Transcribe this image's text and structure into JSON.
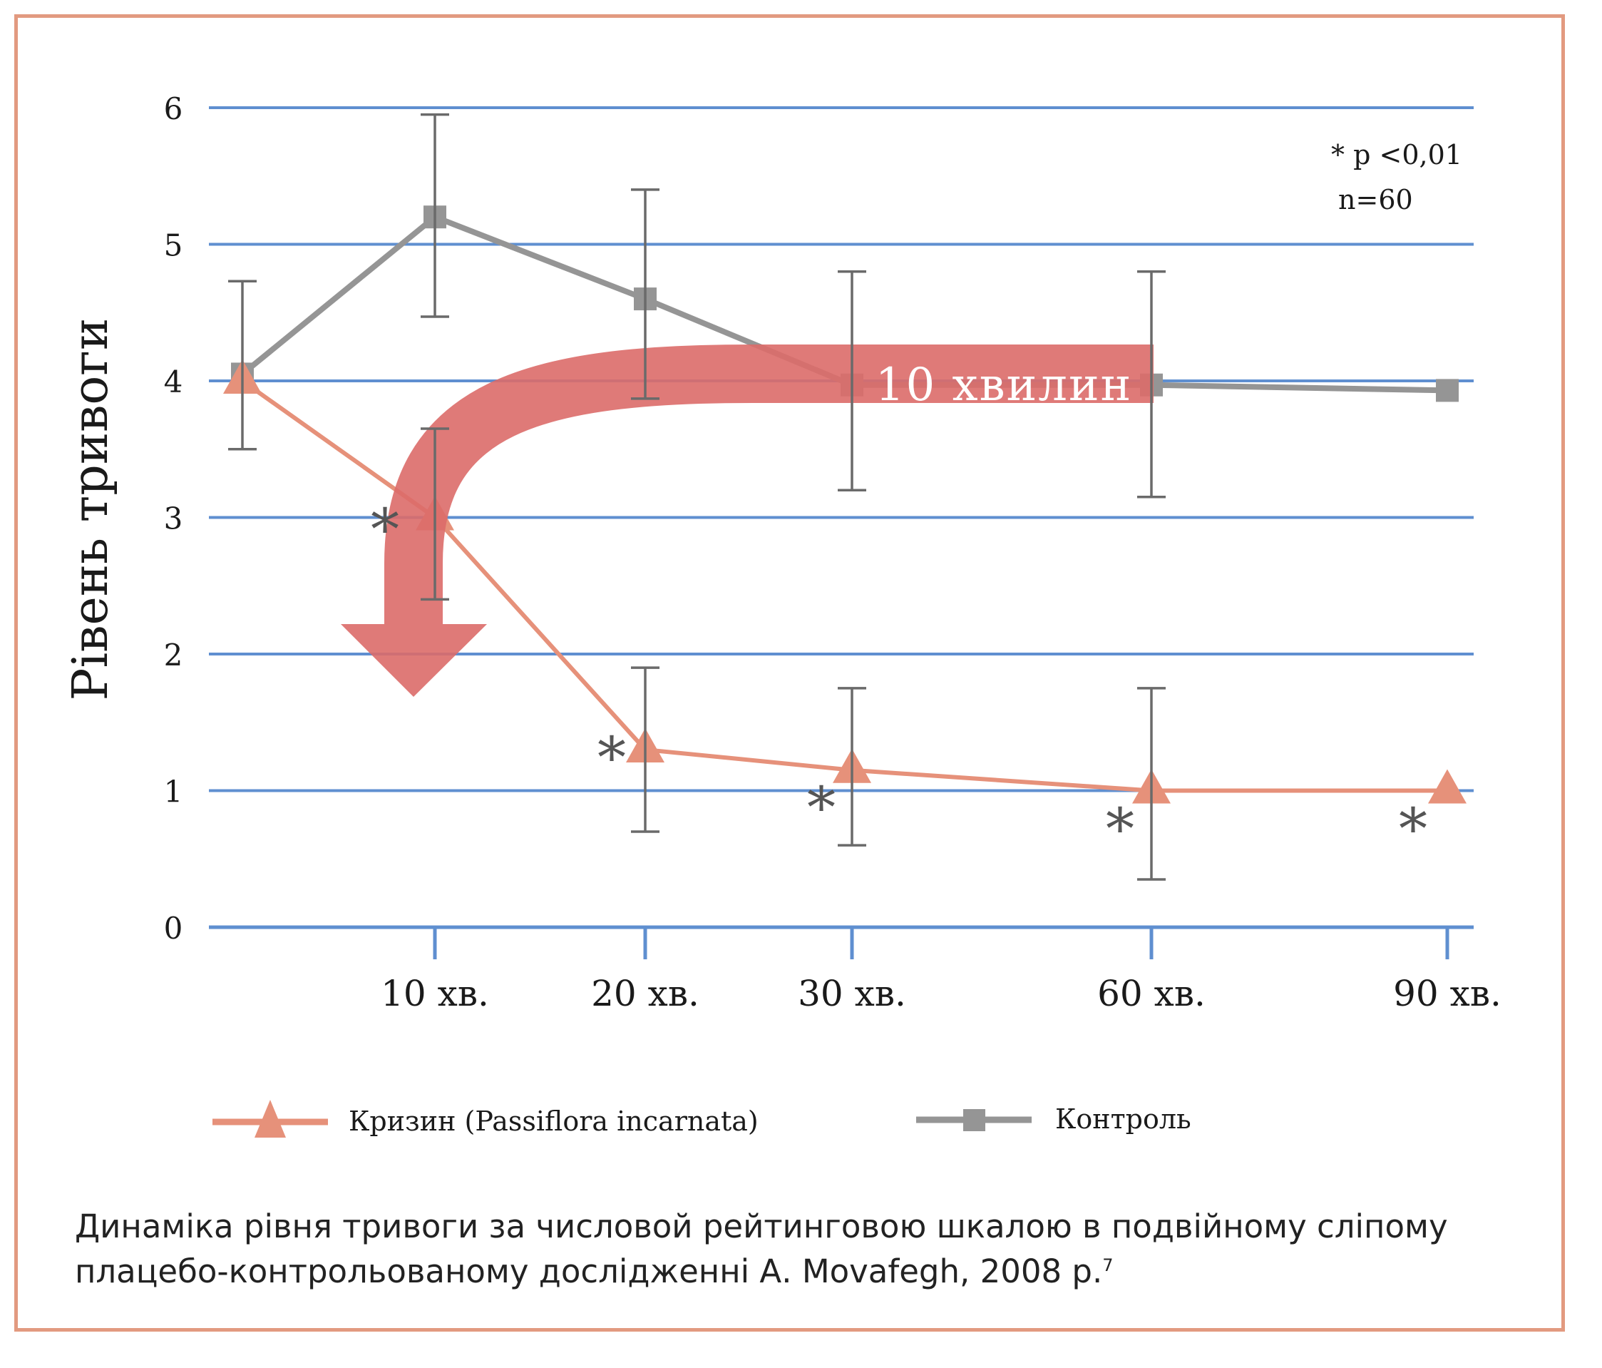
{
  "chart_data": {
    "type": "line",
    "title": "",
    "ylabel": "Рівень тривоги",
    "xlabel": "",
    "ylim": [
      0,
      6
    ],
    "yticks": [
      "0",
      "1",
      "2",
      "3",
      "4",
      "5",
      "6"
    ],
    "categories": [
      "",
      "10 хв.",
      "20 хв.",
      "30 хв.",
      "60 хв.",
      "90 хв."
    ],
    "x": [
      0,
      10,
      20,
      30,
      60,
      90
    ],
    "grid": true,
    "legend_position": "bottom",
    "series": [
      {
        "name": "Кризин (Passiflora incarnata)",
        "color": "#e6917a",
        "marker": "triangle",
        "values": [
          4.0,
          3.0,
          1.3,
          1.15,
          1.0,
          1.0
        ],
        "error_low": [
          null,
          2.4,
          0.7,
          0.6,
          0.35,
          null
        ],
        "error_high": [
          null,
          3.65,
          1.9,
          1.75,
          1.75,
          null
        ],
        "significant": [
          false,
          true,
          true,
          true,
          true,
          true
        ]
      },
      {
        "name": "Контроль",
        "color": "#959595",
        "marker": "square",
        "values": [
          4.05,
          5.2,
          4.6,
          3.97,
          3.97,
          3.93
        ],
        "error_low": [
          3.5,
          4.47,
          3.87,
          3.2,
          3.15,
          null
        ],
        "error_high": [
          4.73,
          5.95,
          5.4,
          4.8,
          4.8,
          null
        ]
      }
    ],
    "significance_symbol": "*",
    "annotations": {
      "p_value": "* р <0,01",
      "n": "n=60",
      "arrow_label": "10 хвилин"
    }
  },
  "colors": {
    "frame": "#e29a80",
    "grid": "#5f8fd0",
    "axis": "#5f8fd0",
    "arrow": "#dc6b69",
    "errorbar": "#6a6a6a",
    "text": "#1a1a1a"
  },
  "caption": {
    "line1": "Динаміка рівня тривоги за числовой рейтинговою шкалою в подвійному сліпому",
    "line2": "плацебо-контрольованому дослідженні А. Movafegh, 2008 р.",
    "footnote": "7"
  }
}
